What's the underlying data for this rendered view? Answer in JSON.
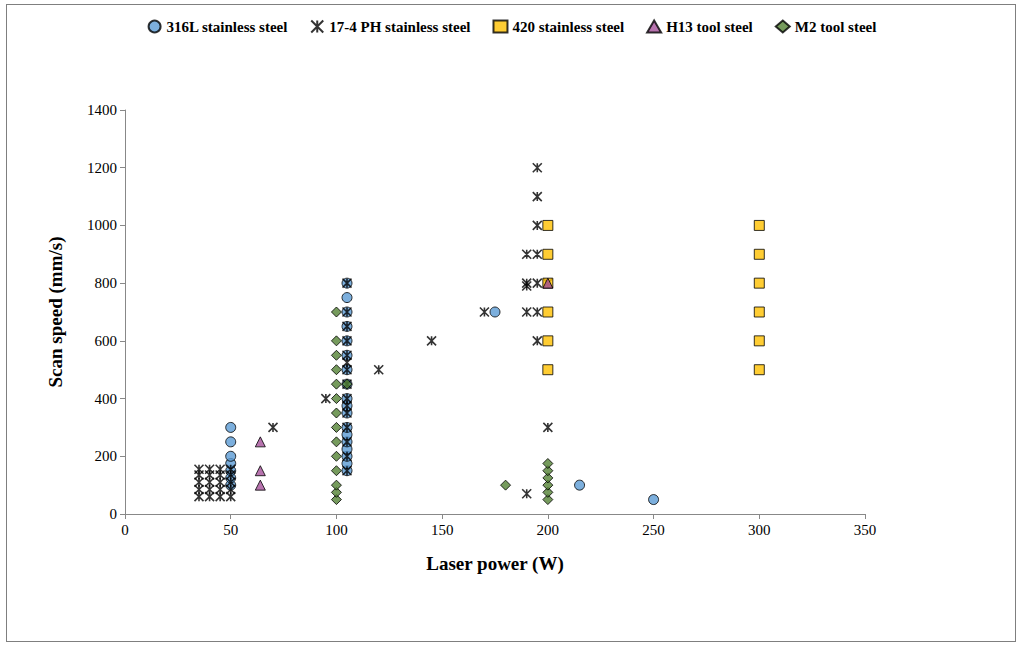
{
  "chart_data": {
    "type": "scatter",
    "x_label": "Laser power (W)",
    "y_label": "Scan speed (mm/s)",
    "xlim": [
      0,
      350
    ],
    "xticks": [
      0,
      50,
      100,
      150,
      200,
      250,
      300,
      350
    ],
    "ylim": [
      0,
      1400
    ],
    "yticks": [
      0,
      200,
      400,
      600,
      800,
      1000,
      1200,
      1400
    ],
    "grid": false,
    "legend": "top",
    "series": [
      {
        "name": "316L stainless steel",
        "color": "#5b9bd5",
        "marker": "circle",
        "x": [
          50,
          50,
          50,
          50,
          50,
          50,
          50,
          105,
          105,
          105,
          105,
          105,
          105,
          105,
          105,
          105,
          105,
          105,
          105,
          105,
          105,
          105,
          105,
          105,
          105,
          175,
          215,
          250
        ],
        "values": [
          100,
          125,
          150,
          175,
          200,
          250,
          300,
          150,
          175,
          200,
          225,
          250,
          275,
          300,
          350,
          375,
          400,
          450,
          500,
          550,
          600,
          650,
          700,
          750,
          800,
          700,
          100,
          50
        ]
      },
      {
        "name": "17-4 PH stainless steel",
        "color": "#000000",
        "marker": "asterisk",
        "x": [
          35,
          35,
          35,
          35,
          35,
          40,
          40,
          40,
          40,
          40,
          45,
          45,
          45,
          45,
          45,
          50,
          50,
          50,
          50,
          50,
          70,
          95,
          120,
          145,
          170,
          105,
          105,
          105,
          105,
          105,
          105,
          105,
          105,
          105,
          105,
          105,
          105,
          105,
          105,
          105,
          190,
          190,
          190,
          190,
          190,
          195,
          195,
          195,
          195,
          195,
          195,
          195,
          200,
          200
        ],
        "values": [
          60,
          85,
          110,
          135,
          155,
          60,
          85,
          110,
          135,
          155,
          60,
          85,
          110,
          135,
          155,
          60,
          85,
          110,
          135,
          155,
          300,
          400,
          500,
          600,
          700,
          150,
          200,
          250,
          300,
          350,
          375,
          400,
          450,
          500,
          525,
          550,
          600,
          650,
          700,
          800,
          70,
          700,
          790,
          800,
          900,
          600,
          700,
          800,
          900,
          1000,
          1100,
          1200,
          300,
          800
        ]
      },
      {
        "name": "420 stainless steel",
        "color": "#ffc000",
        "marker": "square",
        "x": [
          200,
          200,
          200,
          200,
          200,
          200,
          300,
          300,
          300,
          300,
          300,
          300
        ],
        "values": [
          500,
          600,
          700,
          800,
          900,
          1000,
          500,
          600,
          700,
          800,
          900,
          1000
        ]
      },
      {
        "name": "H13 tool steel",
        "color": "#a5509a",
        "marker": "triangle",
        "x": [
          64,
          64,
          64,
          200
        ],
        "values": [
          100,
          150,
          250,
          800
        ]
      },
      {
        "name": "M2 tool steel",
        "color": "#548235",
        "marker": "diamond",
        "x": [
          100,
          100,
          100,
          100,
          100,
          100,
          100,
          100,
          100,
          100,
          100,
          100,
          100,
          100,
          105,
          180,
          200,
          200,
          200,
          200,
          200,
          200
        ],
        "values": [
          50,
          75,
          100,
          150,
          200,
          250,
          300,
          350,
          400,
          450,
          500,
          550,
          600,
          700,
          450,
          100,
          50,
          75,
          100,
          125,
          150,
          175
        ]
      }
    ]
  }
}
